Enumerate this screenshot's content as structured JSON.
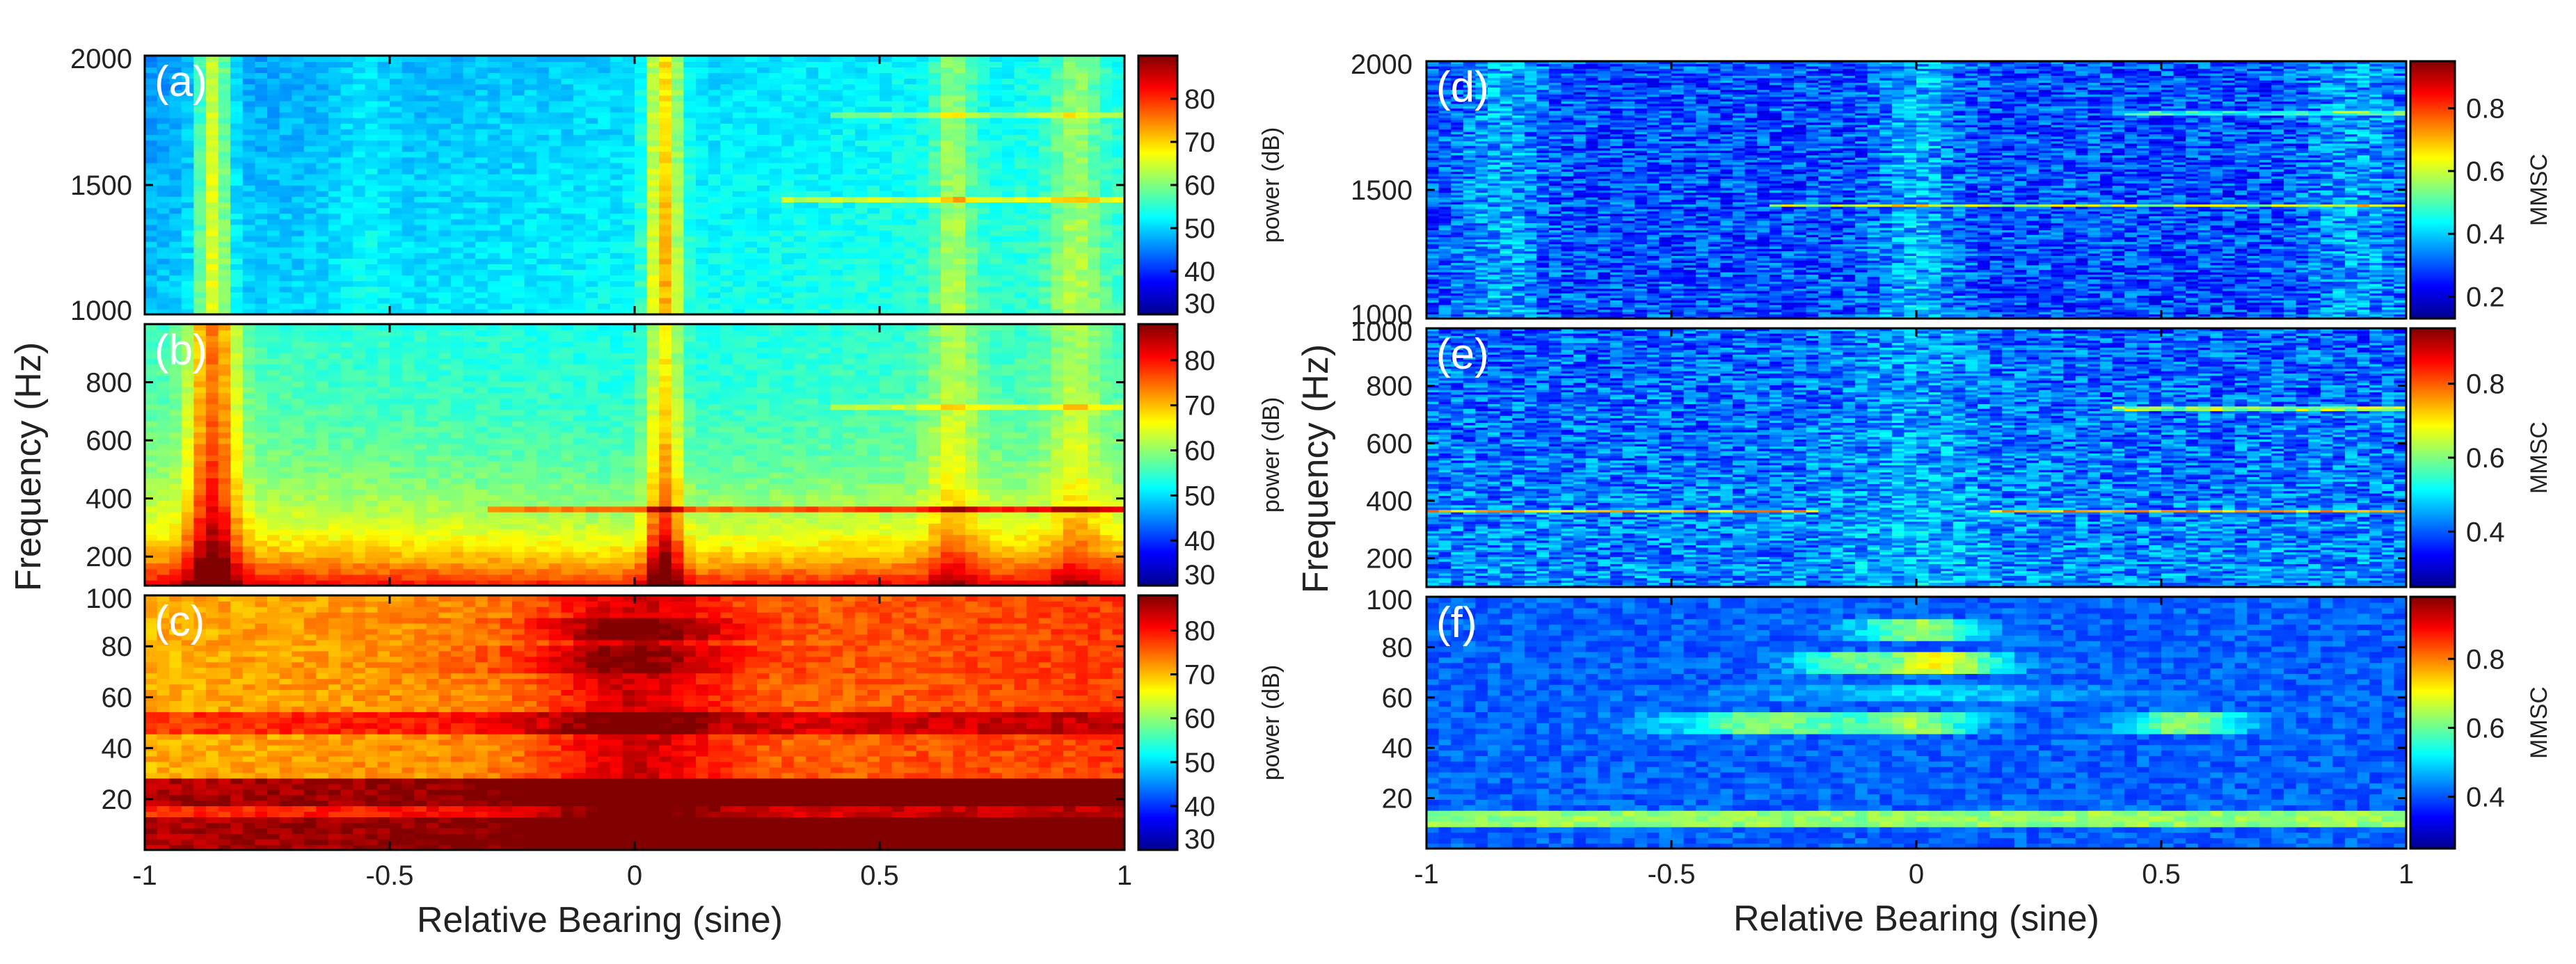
{
  "chart_data": {
    "type": "heatmap",
    "left": {
      "xlabel": "Relative Bearing (sine)",
      "ylabel": "Frequency (Hz)",
      "xlim": [
        -1,
        1
      ],
      "xticks": [
        {
          "value": -1,
          "label": "-1"
        },
        {
          "value": -0.5,
          "label": "-0.5"
        },
        {
          "value": 0,
          "label": "0"
        },
        {
          "value": 0.5,
          "label": "0.5"
        },
        {
          "value": 1,
          "label": "1"
        }
      ],
      "panels": [
        {
          "id": "a",
          "label": "(a)",
          "measure": "power",
          "ylim": [
            1000,
            2000
          ],
          "yticks": [
            {
              "value": 1000,
              "label": "1000"
            },
            {
              "value": 1500,
              "label": "1500"
            },
            {
              "value": 2000,
              "label": "2000"
            }
          ],
          "colorbar": {
            "label": "power (dB)",
            "range": [
              30,
              90
            ],
            "ticks": [
              {
                "value": 30,
                "label": "30"
              },
              {
                "value": 40,
                "label": "40"
              },
              {
                "value": 50,
                "label": "50"
              },
              {
                "value": 60,
                "label": "60"
              },
              {
                "value": 70,
                "label": "70"
              },
              {
                "value": 80,
                "label": "80"
              }
            ]
          }
        },
        {
          "id": "b",
          "label": "(b)",
          "measure": "power",
          "ylim": [
            100,
            1000
          ],
          "yticks": [
            {
              "value": 200,
              "label": "200"
            },
            {
              "value": 400,
              "label": "400"
            },
            {
              "value": 600,
              "label": "600"
            },
            {
              "value": 800,
              "label": "800"
            }
          ],
          "colorbar": {
            "label": "power (dB)",
            "range": [
              30,
              88
            ],
            "ticks": [
              {
                "value": 30,
                "label": "30"
              },
              {
                "value": 40,
                "label": "40"
              },
              {
                "value": 50,
                "label": "50"
              },
              {
                "value": 60,
                "label": "60"
              },
              {
                "value": 70,
                "label": "70"
              },
              {
                "value": 80,
                "label": "80"
              }
            ]
          }
        },
        {
          "id": "c",
          "label": "(c)",
          "measure": "power",
          "ylim": [
            0,
            100
          ],
          "yticks": [
            {
              "value": 20,
              "label": "20"
            },
            {
              "value": 40,
              "label": "40"
            },
            {
              "value": 60,
              "label": "60"
            },
            {
              "value": 80,
              "label": "80"
            },
            {
              "value": 100,
              "label": "100"
            }
          ],
          "colorbar": {
            "label": "power (dB)",
            "range": [
              30,
              88
            ],
            "ticks": [
              {
                "value": 30,
                "label": "30"
              },
              {
                "value": 40,
                "label": "40"
              },
              {
                "value": 50,
                "label": "50"
              },
              {
                "value": 60,
                "label": "60"
              },
              {
                "value": 70,
                "label": "70"
              },
              {
                "value": 80,
                "label": "80"
              }
            ]
          }
        }
      ]
    },
    "right": {
      "xlabel": "Relative Bearing (sine)",
      "ylabel": "Frequency (Hz)",
      "xlim": [
        -1,
        1
      ],
      "xticks": [
        {
          "value": -1,
          "label": "-1"
        },
        {
          "value": -0.5,
          "label": "-0.5"
        },
        {
          "value": 0,
          "label": "0"
        },
        {
          "value": 0.5,
          "label": "0.5"
        },
        {
          "value": 1,
          "label": "1"
        }
      ],
      "panels": [
        {
          "id": "d",
          "label": "(d)",
          "measure": "mmsc",
          "ylim": [
            1000,
            2000
          ],
          "yticks": [
            {
              "value": 1000,
              "label": "1000"
            },
            {
              "value": 1500,
              "label": "1500"
            },
            {
              "value": 2000,
              "label": "2000"
            }
          ],
          "colorbar": {
            "label": "MMSC",
            "range": [
              0.13,
              0.95
            ],
            "ticks": [
              {
                "value": 0.2,
                "label": "0.2"
              },
              {
                "value": 0.4,
                "label": "0.4"
              },
              {
                "value": 0.6,
                "label": "0.6"
              },
              {
                "value": 0.8,
                "label": "0.8"
              }
            ]
          }
        },
        {
          "id": "e",
          "label": "(e)",
          "measure": "mmsc",
          "ylim": [
            100,
            1000
          ],
          "yticks": [
            {
              "value": 200,
              "label": "200"
            },
            {
              "value": 400,
              "label": "400"
            },
            {
              "value": 600,
              "label": "600"
            },
            {
              "value": 800,
              "label": "800"
            },
            {
              "value": 1000,
              "label": "1000"
            }
          ],
          "colorbar": {
            "label": "MMSC",
            "range": [
              0.25,
              0.95
            ],
            "ticks": [
              {
                "value": 0.4,
                "label": "0.4"
              },
              {
                "value": 0.6,
                "label": "0.6"
              },
              {
                "value": 0.8,
                "label": "0.8"
              }
            ]
          }
        },
        {
          "id": "f",
          "label": "(f)",
          "measure": "mmsc",
          "ylim": [
            0,
            100
          ],
          "yticks": [
            {
              "value": 20,
              "label": "20"
            },
            {
              "value": 40,
              "label": "40"
            },
            {
              "value": 60,
              "label": "60"
            },
            {
              "value": 80,
              "label": "80"
            },
            {
              "value": 100,
              "label": "100"
            }
          ],
          "colorbar": {
            "label": "MMSC",
            "range": [
              0.25,
              0.98
            ],
            "ticks": [
              {
                "value": 0.4,
                "label": "0.4"
              },
              {
                "value": 0.6,
                "label": "0.6"
              },
              {
                "value": 0.8,
                "label": "0.8"
              }
            ]
          }
        }
      ]
    }
  }
}
